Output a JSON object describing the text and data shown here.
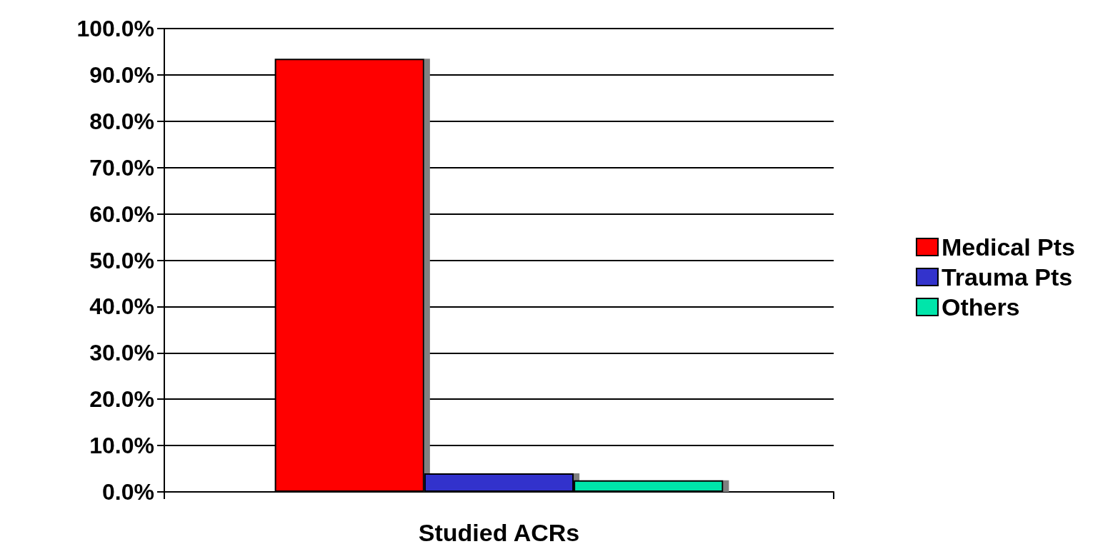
{
  "chart_data": {
    "type": "bar",
    "xlabel": "Studied ACRs",
    "categories": [
      null
    ],
    "series": [
      {
        "name": "Medical Pts",
        "color": "#ff0000",
        "values": [
          93.5
        ]
      },
      {
        "name": "Trauma Pts",
        "color": "#3333cc",
        "values": [
          4.0
        ]
      },
      {
        "name": "Others",
        "color": "#00e5aa",
        "values": [
          2.5
        ]
      }
    ],
    "ylim": [
      0,
      100
    ],
    "yticks": [
      {
        "value": 0,
        "label": "0.0%"
      },
      {
        "value": 10,
        "label": "10.0%"
      },
      {
        "value": 20,
        "label": "20.0%"
      },
      {
        "value": 30,
        "label": "30.0%"
      },
      {
        "value": 40,
        "label": "40.0%"
      },
      {
        "value": 50,
        "label": "50.0%"
      },
      {
        "value": 60,
        "label": "60.0%"
      },
      {
        "value": 70,
        "label": "70.0%"
      },
      {
        "value": 80,
        "label": "80.0%"
      },
      {
        "value": 90,
        "label": "90.0%"
      },
      {
        "value": 100,
        "label": "100.0%"
      }
    ],
    "grid": "y",
    "legend": "right"
  }
}
